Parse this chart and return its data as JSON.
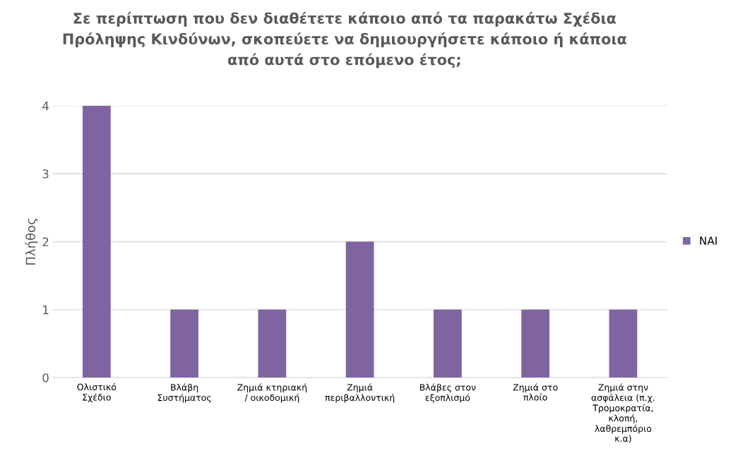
{
  "chart_data": {
    "type": "bar",
    "title": "Σε περίπτωση που δεν διαθέτετε κάποιο από τα παρακάτω Σχέδια Πρόληψης Κινδύνων, σκοπεύετε να δημιουργήσετε κάποιο ή κάποια από αυτά στο επόμενο έτος;",
    "ylabel": "Πλήθος",
    "categories": [
      "Ολιστικό Σχέδιο",
      "Βλάβη Συστήματος",
      "Ζημιά κτηριακή / οικοδομική",
      "Ζημιά περιβαλλοντική",
      "Βλάβες στον εξοπλισμό",
      "Ζημιά στο πλοίο",
      "Ζημιά στην ασφάλεια (π.χ. Τρομοκρατία, κλοπή, λαθρεμπόριο κ.α)"
    ],
    "series": [
      {
        "name": "ΝΑΙ",
        "color": "#8064a2",
        "values": [
          4,
          1,
          1,
          2,
          1,
          1,
          1
        ]
      }
    ],
    "ylim": [
      0,
      4
    ],
    "yticks": [
      0,
      1,
      2,
      3,
      4
    ],
    "grid": "y",
    "legend": "right"
  }
}
